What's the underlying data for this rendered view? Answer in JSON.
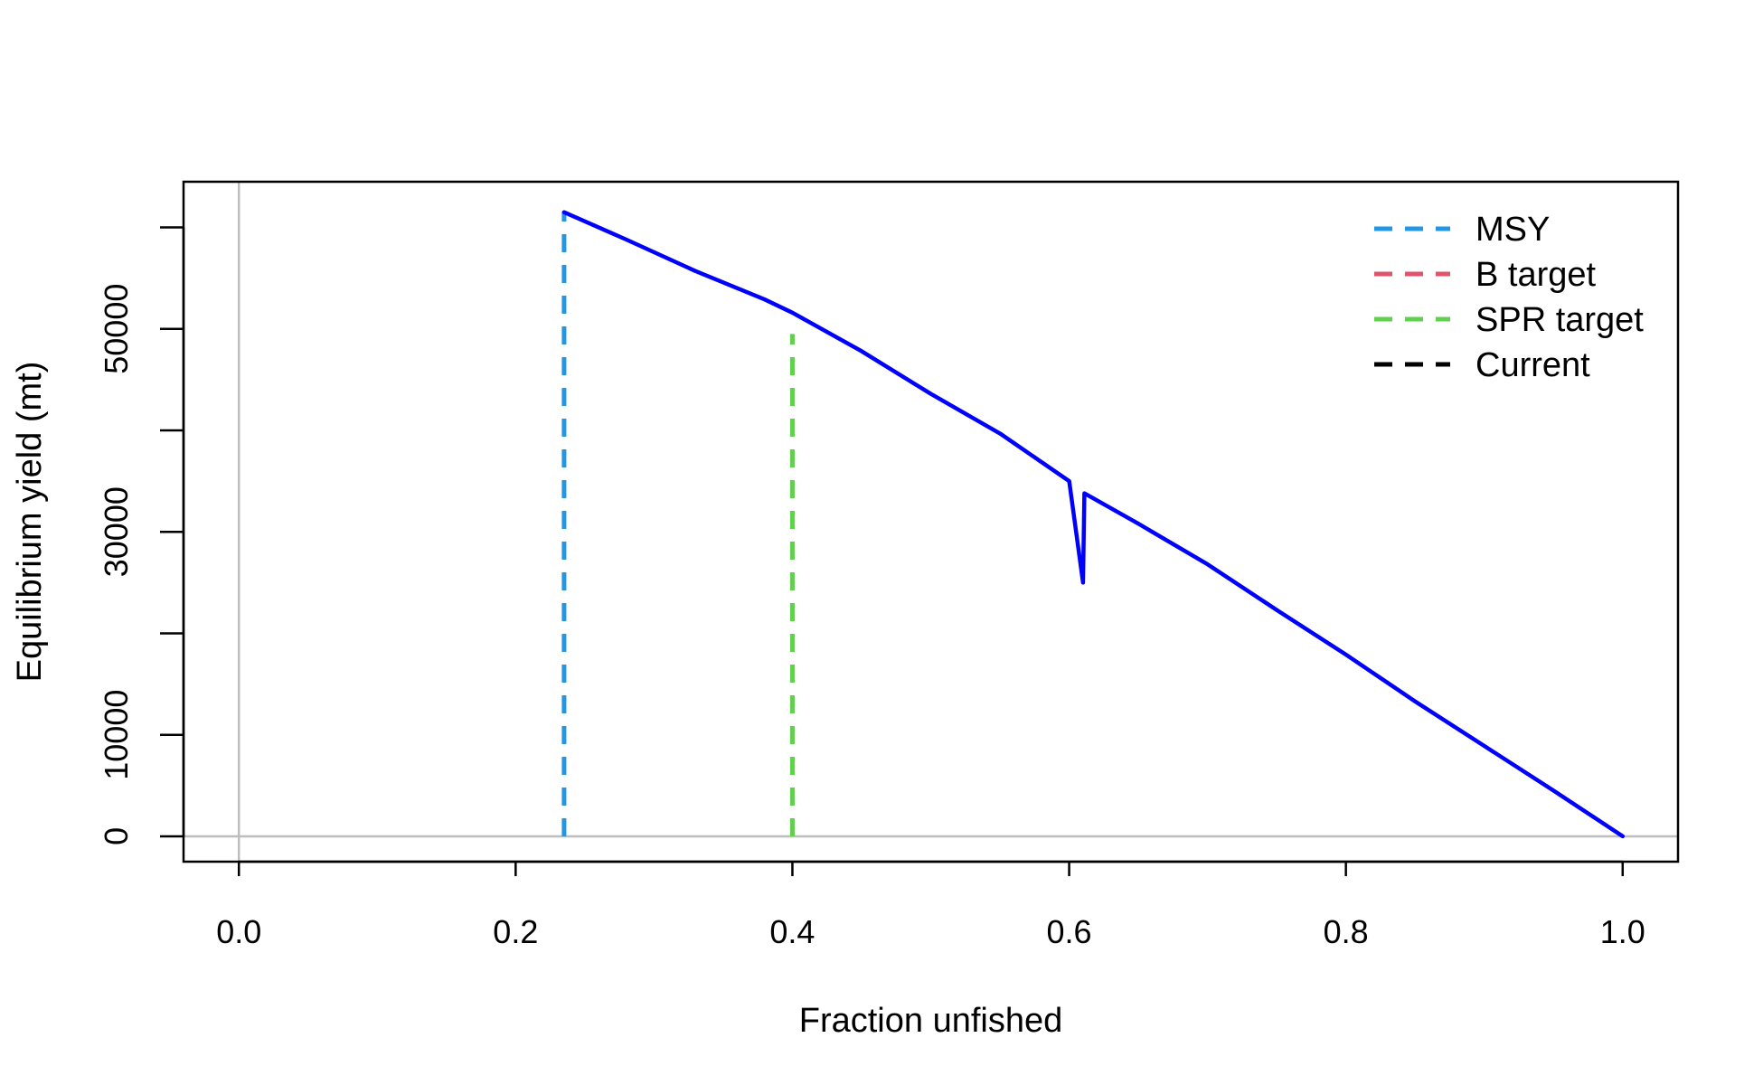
{
  "chart_data": {
    "type": "line",
    "xlabel": "Fraction unfished",
    "ylabel": "Equilibrium yield (mt)",
    "xlim": [
      -0.04,
      1.04
    ],
    "ylim": [
      -2500,
      64500
    ],
    "x_ticks": [
      0.0,
      0.2,
      0.4,
      0.6,
      0.8,
      1.0
    ],
    "x_tick_labels": [
      "0.0",
      "0.2",
      "0.4",
      "0.6",
      "0.8",
      "1.0"
    ],
    "y_ticks": [
      0,
      10000,
      20000,
      30000,
      40000,
      50000,
      60000
    ],
    "y_tick_labels": [
      "0",
      "10000",
      "",
      "30000",
      "",
      "50000",
      ""
    ],
    "reference_lines": {
      "x": 0,
      "y": 0,
      "color": "#bebebe"
    },
    "series": [
      {
        "color": "#0000ff",
        "x": [
          0.235,
          0.28,
          0.33,
          0.38,
          0.4,
          0.45,
          0.5,
          0.55,
          0.6,
          0.61,
          0.611,
          0.65,
          0.7,
          0.75,
          0.8,
          0.85,
          0.9,
          0.95,
          1.0
        ],
        "y": [
          61500,
          58800,
          55700,
          52900,
          51600,
          47800,
          43600,
          39700,
          35000,
          25000,
          33800,
          30800,
          26800,
          22300,
          17900,
          13300,
          8900,
          4500,
          0
        ]
      }
    ],
    "vlines": [
      {
        "name": "MSY",
        "x": 0.235,
        "y_top": 61500,
        "color": "#2297e6"
      },
      {
        "name": "SPR target",
        "x": 0.4,
        "y_top": 49500,
        "color": "#61d04f"
      }
    ],
    "legend": {
      "position": "top-right",
      "entries": [
        {
          "label": "MSY",
          "color": "#2297e6"
        },
        {
          "label": "B target",
          "color": "#df536b"
        },
        {
          "label": "SPR target",
          "color": "#61d04f"
        },
        {
          "label": "Current",
          "color": "#000000"
        }
      ]
    }
  }
}
